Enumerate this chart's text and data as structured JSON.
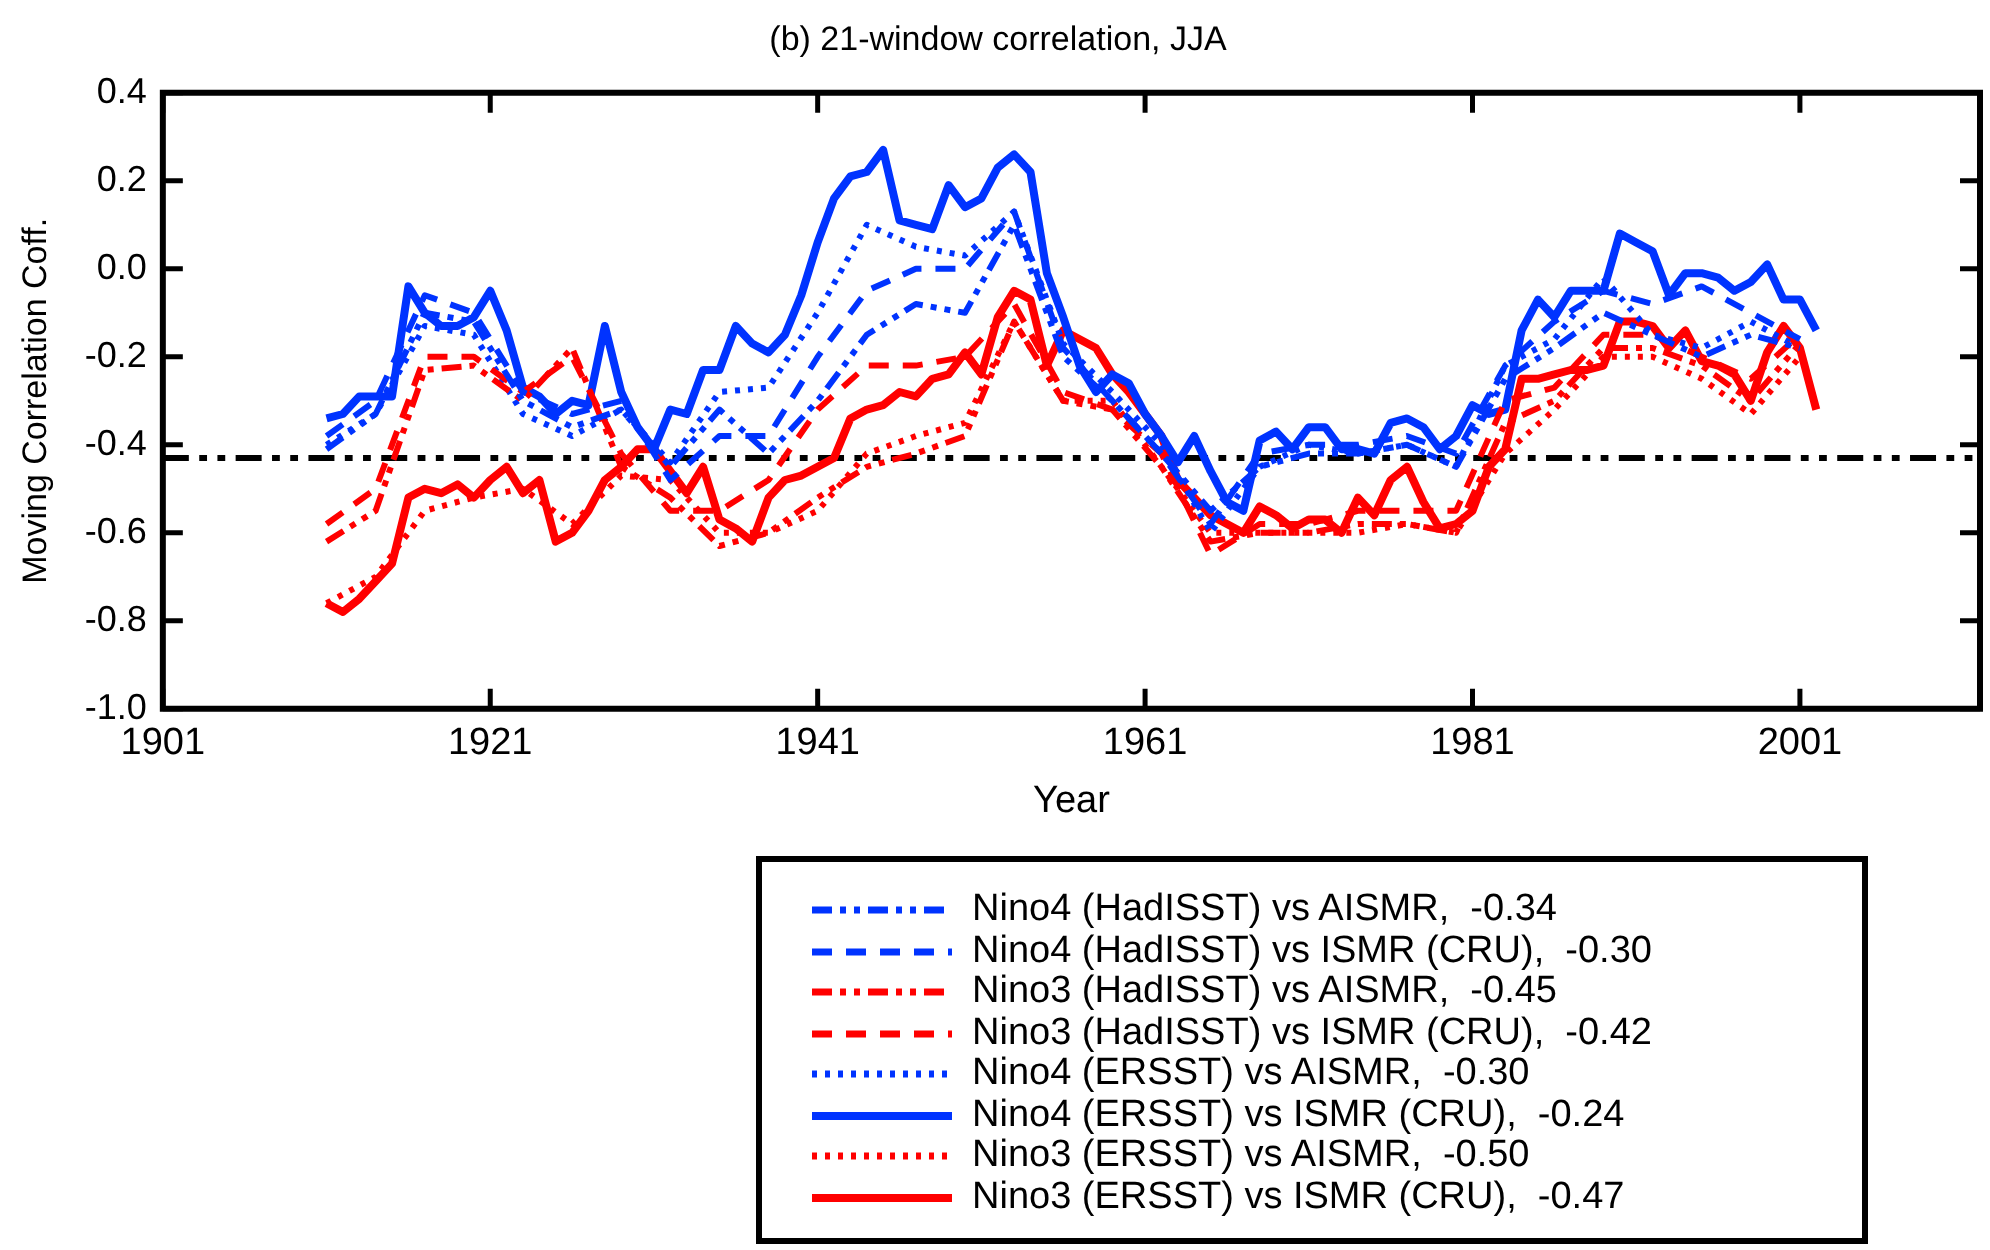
{
  "chart_data": {
    "type": "line",
    "title": "(b) 21-window correlation, JJA",
    "xlabel": "Year",
    "ylabel": "Moving Correlation Coff.",
    "xlim": [
      1901,
      2012
    ],
    "xticks": [
      1901,
      1921,
      1941,
      1961,
      1981,
      2001
    ],
    "ylim": [
      -1,
      0.4
    ],
    "yticks": [
      {
        "value": -1,
        "label": "-1.0"
      },
      -0.8,
      -0.6,
      -0.4,
      -0.2,
      {
        "value": 0,
        "label": "0.0"
      },
      0.2,
      0.4
    ],
    "grid": false,
    "legend": "bottom right",
    "marker": "none",
    "ref_lines": [
      {
        "axis": "y",
        "value": -0.43,
        "color": "#000000",
        "line_style": "dashdot"
      }
    ],
    "x": [
      1911,
      1912,
      1913,
      1914,
      1915,
      1916,
      1917,
      1918,
      1919,
      1920,
      1921,
      1922,
      1923,
      1924,
      1925,
      1926,
      1927,
      1928,
      1929,
      1930,
      1931,
      1932,
      1933,
      1934,
      1935,
      1936,
      1937,
      1938,
      1939,
      1940,
      1941,
      1942,
      1943,
      1944,
      1945,
      1946,
      1947,
      1948,
      1949,
      1950,
      1951,
      1952,
      1953,
      1954,
      1955,
      1956,
      1957,
      1958,
      1959,
      1960,
      1961,
      1962,
      1963,
      1964,
      1965,
      1966,
      1967,
      1968,
      1969,
      1970,
      1971,
      1972,
      1973,
      1974,
      1975,
      1976,
      1977,
      1978,
      1979,
      1980,
      1981,
      1982,
      1983,
      1984,
      1985,
      1986,
      1987,
      1988,
      1989,
      1990,
      1991,
      1992,
      1993,
      1994,
      1995,
      1996,
      1997,
      1998,
      1999,
      2000,
      2001,
      2002
    ],
    "series": [
      {
        "name": "Nino4 (HadISST) vs AISMR,  -0.34",
        "color": "#0033ff",
        "line_style": "dashdot",
        "x": [
          1911,
          1914,
          1917,
          1920,
          1923,
          1926,
          1929,
          1932,
          1935,
          1938,
          1941,
          1944,
          1947,
          1950,
          1953,
          1956,
          1959,
          1962,
          1965,
          1968,
          1971,
          1974,
          1977,
          1980,
          1983,
          1986,
          1989,
          1992,
          1995,
          1998,
          2001
        ],
        "values": [
          -0.41,
          -0.33,
          -0.1,
          -0.12,
          -0.3,
          -0.36,
          -0.32,
          -0.45,
          -0.32,
          -0.42,
          -0.3,
          -0.15,
          -0.08,
          -0.1,
          0.1,
          -0.2,
          -0.3,
          -0.42,
          -0.55,
          -0.45,
          -0.42,
          -0.42,
          -0.4,
          -0.45,
          -0.25,
          -0.18,
          -0.1,
          -0.15,
          -0.2,
          -0.15,
          -0.18
        ]
      },
      {
        "name": "Nino4 (HadISST) vs ISMR (CRU),  -0.30",
        "color": "#0033ff",
        "line_style": "dashed",
        "x": [
          1911,
          1914,
          1917,
          1920,
          1923,
          1926,
          1929,
          1932,
          1935,
          1938,
          1941,
          1944,
          1947,
          1950,
          1953,
          1956,
          1959,
          1962,
          1965,
          1968,
          1971,
          1974,
          1977,
          1980,
          1983,
          1986,
          1989,
          1992,
          1995,
          1998,
          2001
        ],
        "values": [
          -0.38,
          -0.3,
          -0.06,
          -0.1,
          -0.28,
          -0.33,
          -0.3,
          -0.48,
          -0.38,
          -0.38,
          -0.2,
          -0.05,
          0.0,
          0.0,
          0.13,
          -0.18,
          -0.3,
          -0.42,
          -0.58,
          -0.42,
          -0.4,
          -0.4,
          -0.38,
          -0.42,
          -0.22,
          -0.12,
          -0.05,
          -0.08,
          -0.04,
          -0.1,
          -0.16
        ]
      },
      {
        "name": "Nino3 (HadISST) vs AISMR,  -0.45",
        "color": "#ff0000",
        "line_style": "dashdot",
        "x": [
          1911,
          1914,
          1917,
          1920,
          1923,
          1926,
          1929,
          1932,
          1935,
          1938,
          1941,
          1944,
          1947,
          1950,
          1953,
          1956,
          1959,
          1962,
          1965,
          1968,
          1971,
          1974,
          1977,
          1980,
          1983,
          1986,
          1989,
          1992,
          1995,
          1998,
          2001
        ],
        "values": [
          -0.62,
          -0.55,
          -0.23,
          -0.22,
          -0.3,
          -0.18,
          -0.45,
          -0.52,
          -0.63,
          -0.6,
          -0.52,
          -0.45,
          -0.42,
          -0.38,
          -0.12,
          -0.3,
          -0.32,
          -0.45,
          -0.62,
          -0.6,
          -0.6,
          -0.58,
          -0.58,
          -0.6,
          -0.35,
          -0.3,
          -0.18,
          -0.18,
          -0.22,
          -0.3,
          -0.17
        ]
      },
      {
        "name": "Nino3 (HadISST) vs ISMR (CRU),  -0.42",
        "color": "#ff0000",
        "line_style": "dashed",
        "x": [
          1911,
          1914,
          1917,
          1920,
          1923,
          1926,
          1929,
          1932,
          1935,
          1938,
          1941,
          1944,
          1947,
          1950,
          1953,
          1956,
          1959,
          1962,
          1965,
          1968,
          1971,
          1974,
          1977,
          1980,
          1983,
          1986,
          1989,
          1992,
          1995,
          1998,
          2001
        ],
        "values": [
          -0.58,
          -0.5,
          -0.2,
          -0.2,
          -0.28,
          -0.2,
          -0.42,
          -0.55,
          -0.55,
          -0.48,
          -0.32,
          -0.22,
          -0.22,
          -0.2,
          -0.08,
          -0.28,
          -0.32,
          -0.42,
          -0.65,
          -0.58,
          -0.58,
          -0.55,
          -0.55,
          -0.55,
          -0.3,
          -0.27,
          -0.15,
          -0.15,
          -0.2,
          -0.25,
          -0.15
        ]
      },
      {
        "name": "Nino4 (ERSST) vs AISMR,  -0.30",
        "color": "#0033ff",
        "line_style": "dotted",
        "x": [
          1911,
          1914,
          1917,
          1920,
          1923,
          1926,
          1929,
          1932,
          1935,
          1938,
          1941,
          1944,
          1947,
          1950,
          1953,
          1956,
          1959,
          1962,
          1965,
          1968,
          1971,
          1974,
          1977,
          1980,
          1983,
          1986,
          1989,
          1992,
          1995,
          1998,
          2001
        ],
        "values": [
          -0.4,
          -0.33,
          -0.13,
          -0.15,
          -0.33,
          -0.38,
          -0.32,
          -0.44,
          -0.28,
          -0.27,
          -0.1,
          0.1,
          0.05,
          0.03,
          0.13,
          -0.17,
          -0.28,
          -0.4,
          -0.6,
          -0.45,
          -0.4,
          -0.42,
          -0.4,
          -0.45,
          -0.22,
          -0.16,
          -0.02,
          -0.15,
          -0.18,
          -0.12,
          -0.18
        ]
      },
      {
        "name": "Nino4 (ERSST) vs ISMR (CRU),  -0.24",
        "color": "#0033ff",
        "line_style": "solid",
        "values": [
          -0.34,
          -0.33,
          -0.29,
          -0.29,
          -0.29,
          -0.04,
          -0.1,
          -0.13,
          -0.13,
          -0.11,
          -0.05,
          -0.14,
          -0.27,
          -0.29,
          -0.33,
          -0.3,
          -0.31,
          -0.13,
          -0.28,
          -0.36,
          -0.41,
          -0.32,
          -0.33,
          -0.23,
          -0.23,
          -0.13,
          -0.17,
          -0.19,
          -0.15,
          -0.06,
          0.06,
          0.16,
          0.21,
          0.22,
          0.27,
          0.11,
          0.1,
          0.09,
          0.19,
          0.14,
          0.16,
          0.23,
          0.26,
          0.22,
          -0.01,
          -0.11,
          -0.22,
          -0.28,
          -0.24,
          -0.26,
          -0.33,
          -0.38,
          -0.44,
          -0.38,
          -0.46,
          -0.53,
          -0.55,
          -0.39,
          -0.37,
          -0.41,
          -0.36,
          -0.36,
          -0.41,
          -0.41,
          -0.42,
          -0.35,
          -0.34,
          -0.36,
          -0.41,
          -0.38,
          -0.31,
          -0.33,
          -0.32,
          -0.14,
          -0.07,
          -0.11,
          -0.05,
          -0.05,
          -0.05,
          0.08,
          0.06,
          0.04,
          -0.06,
          -0.01,
          -0.01,
          -0.02,
          -0.05,
          -0.03,
          0.01,
          -0.07,
          -0.07,
          -0.14
        ]
      },
      {
        "name": "Nino3 (ERSST) vs AISMR,  -0.50",
        "color": "#ff0000",
        "line_style": "dotted",
        "x": [
          1911,
          1914,
          1917,
          1920,
          1923,
          1926,
          1929,
          1932,
          1935,
          1938,
          1941,
          1944,
          1947,
          1950,
          1953,
          1956,
          1959,
          1962,
          1965,
          1968,
          1971,
          1974,
          1977,
          1980,
          1983,
          1986,
          1989,
          1992,
          1995,
          1998,
          2001
        ],
        "values": [
          -0.76,
          -0.7,
          -0.55,
          -0.52,
          -0.5,
          -0.58,
          -0.47,
          -0.48,
          -0.6,
          -0.6,
          -0.55,
          -0.42,
          -0.38,
          -0.35,
          -0.12,
          -0.3,
          -0.3,
          -0.45,
          -0.6,
          -0.6,
          -0.6,
          -0.6,
          -0.58,
          -0.6,
          -0.42,
          -0.32,
          -0.2,
          -0.2,
          -0.25,
          -0.33,
          -0.2
        ]
      },
      {
        "name": "Nino3 (ERSST) vs ISMR (CRU),  -0.47",
        "color": "#ff0000",
        "line_style": "solid",
        "values": [
          -0.76,
          -0.78,
          -0.75,
          -0.71,
          -0.67,
          -0.52,
          -0.5,
          -0.51,
          -0.49,
          -0.52,
          -0.48,
          -0.45,
          -0.51,
          -0.48,
          -0.62,
          -0.6,
          -0.55,
          -0.48,
          -0.45,
          -0.41,
          -0.41,
          -0.46,
          -0.51,
          -0.45,
          -0.57,
          -0.59,
          -0.62,
          -0.52,
          -0.48,
          -0.47,
          -0.45,
          -0.43,
          -0.34,
          -0.32,
          -0.31,
          -0.28,
          -0.29,
          -0.25,
          -0.24,
          -0.19,
          -0.24,
          -0.11,
          -0.05,
          -0.07,
          -0.22,
          -0.14,
          -0.16,
          -0.18,
          -0.24,
          -0.28,
          -0.33,
          -0.38,
          -0.48,
          -0.52,
          -0.56,
          -0.58,
          -0.6,
          -0.54,
          -0.56,
          -0.59,
          -0.57,
          -0.57,
          -0.6,
          -0.52,
          -0.56,
          -0.48,
          -0.45,
          -0.53,
          -0.59,
          -0.58,
          -0.55,
          -0.45,
          -0.41,
          -0.25,
          -0.25,
          -0.24,
          -0.23,
          -0.23,
          -0.22,
          -0.12,
          -0.12,
          -0.13,
          -0.18,
          -0.14,
          -0.21,
          -0.22,
          -0.24,
          -0.3,
          -0.19,
          -0.13,
          -0.18,
          -0.32
        ]
      }
    ]
  }
}
